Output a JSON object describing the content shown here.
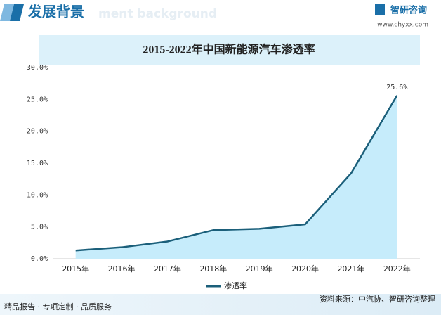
{
  "header": {
    "title": "发展背景",
    "subtitle_faded": "ment background",
    "logo": "智研咨询",
    "website": "www.chyxx.com"
  },
  "chart_data": {
    "type": "line",
    "title": "2015-2022年中国新能源汽车渗透率",
    "categories": [
      "2015年",
      "2016年",
      "2017年",
      "2018年",
      "2019年",
      "2020年",
      "2021年",
      "2022年"
    ],
    "series": [
      {
        "name": "渗透率",
        "color": "#1b5f7a",
        "area_color": "#c6ecfb",
        "values": [
          1.3,
          1.8,
          2.7,
          4.5,
          4.7,
          5.4,
          13.4,
          25.6
        ],
        "value_labels": [
          null,
          null,
          null,
          null,
          null,
          null,
          null,
          "25.6%"
        ]
      }
    ],
    "ylim": [
      0,
      30
    ],
    "yticks": [
      {
        "value": 0,
        "label": "0.0%"
      },
      {
        "value": 5,
        "label": "5.0%"
      },
      {
        "value": 10,
        "label": "10.0%"
      },
      {
        "value": 15,
        "label": "15.0%"
      },
      {
        "value": 20,
        "label": "20.0%"
      },
      {
        "value": 25,
        "label": "25.0%"
      },
      {
        "value": 30,
        "label": "30.0%"
      }
    ],
    "grid": false,
    "legend": "bottom"
  },
  "footer": {
    "left": "精品报告 · 专项定制 · 品质服务",
    "source": "资料来源：中汽协、智研咨询整理"
  }
}
